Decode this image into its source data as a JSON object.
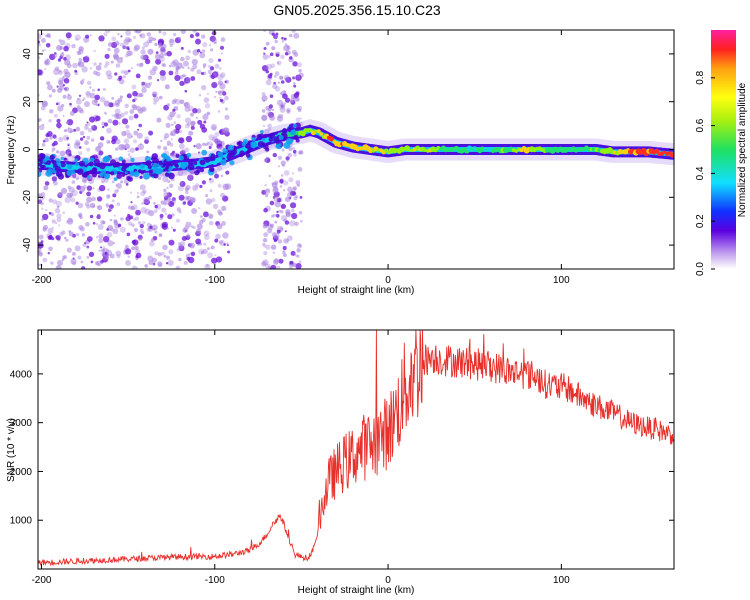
{
  "title": "GN05.2025.356.15.10.C23",
  "colors": {
    "snr_line": "#e8302b",
    "scatter_background": "#a880e0",
    "ridge_core": "#10d8e0",
    "ridge_edge": "#4a00d0",
    "ridge_hot": "#ff2020"
  },
  "chart_data": [
    {
      "type": "heatmap",
      "name": "spectrogram",
      "title": "GN05.2025.356.15.10.C23",
      "xlabel": "Height of straight line (km)",
      "ylabel": "Frequency (Hz)",
      "xlim": [
        -202,
        165
      ],
      "ylim": [
        -50,
        50
      ],
      "x_ticks": [
        -200,
        -100,
        0,
        100
      ],
      "x_tick_labels": [
        "-200",
        "-100",
        "0",
        "100"
      ],
      "y_ticks": [
        -40,
        -20,
        0,
        20,
        40
      ],
      "y_tick_labels": [
        "-40",
        "-20",
        "0",
        "20",
        "40"
      ],
      "ridge": {
        "x": [
          -202,
          -190,
          -170,
          -150,
          -130,
          -110,
          -100,
          -90,
          -80,
          -70,
          -60,
          -50,
          -45,
          -40,
          -35,
          -30,
          -20,
          -10,
          0,
          10,
          20,
          30,
          40,
          50,
          60,
          70,
          80,
          90,
          100,
          110,
          120,
          130,
          140,
          150,
          165
        ],
        "frequency": [
          -6,
          -7,
          -8,
          -8,
          -7,
          -6,
          -5,
          -2,
          1,
          4,
          6,
          7,
          8,
          7,
          5,
          3,
          1,
          0,
          -1,
          0,
          0,
          0,
          0,
          0,
          0,
          0,
          0,
          0,
          0,
          0,
          0,
          -1,
          -1,
          -1,
          -2
        ],
        "amplitude": [
          0.2,
          0.25,
          0.3,
          0.32,
          0.3,
          0.3,
          0.3,
          0.35,
          0.4,
          0.45,
          0.5,
          0.6,
          0.7,
          0.75,
          0.85,
          0.9,
          0.85,
          0.8,
          0.7,
          0.7,
          0.75,
          0.6,
          0.5,
          0.5,
          0.5,
          0.55,
          0.8,
          0.65,
          0.5,
          0.55,
          0.6,
          0.75,
          0.9,
          0.95,
          1.0
        ]
      },
      "colorbar": {
        "label": "Normalized spectral amplitude",
        "range": [
          0,
          1
        ],
        "ticks": [
          0,
          0.2,
          0.4,
          0.6,
          0.8
        ],
        "tick_labels": [
          "0.0",
          "0.2",
          "0.4",
          "0.6",
          "0.8"
        ]
      }
    },
    {
      "type": "line",
      "name": "snr",
      "xlabel": "Height of straight line (km)",
      "ylabel": "SNR (10 * v/v)",
      "xlim": [
        -202,
        165
      ],
      "ylim": [
        0,
        4900
      ],
      "x_ticks": [
        -200,
        -100,
        0,
        100
      ],
      "x_tick_labels": [
        "-200",
        "-100",
        "0",
        "100"
      ],
      "y_ticks": [
        1000,
        2000,
        3000,
        4000
      ],
      "y_tick_labels": [
        "1000",
        "2000",
        "3000",
        "4000"
      ],
      "series": [
        {
          "name": "SNR",
          "x": [
            -202,
            -180,
            -160,
            -140,
            -120,
            -100,
            -90,
            -80,
            -75,
            -70,
            -66,
            -62,
            -58,
            -54,
            -50,
            -46,
            -42,
            -38,
            -34,
            -30,
            -26,
            -22,
            -18,
            -14,
            -10,
            -6,
            -2,
            2,
            6,
            10,
            14,
            18,
            22,
            26,
            30,
            40,
            50,
            60,
            70,
            80,
            86,
            90,
            96,
            104,
            110,
            120,
            130,
            140,
            150,
            165
          ],
          "y": [
            130,
            160,
            190,
            220,
            250,
            260,
            300,
            380,
            500,
            700,
            950,
            1100,
            700,
            300,
            250,
            220,
            500,
            1300,
            1800,
            2000,
            2150,
            2250,
            2400,
            2500,
            2550,
            2650,
            2750,
            2950,
            3300,
            3700,
            4000,
            4200,
            4300,
            4350,
            4300,
            4250,
            4200,
            4150,
            4050,
            4000,
            3950,
            3800,
            3750,
            3700,
            3550,
            3350,
            3200,
            3000,
            2900,
            2750
          ]
        }
      ]
    }
  ]
}
